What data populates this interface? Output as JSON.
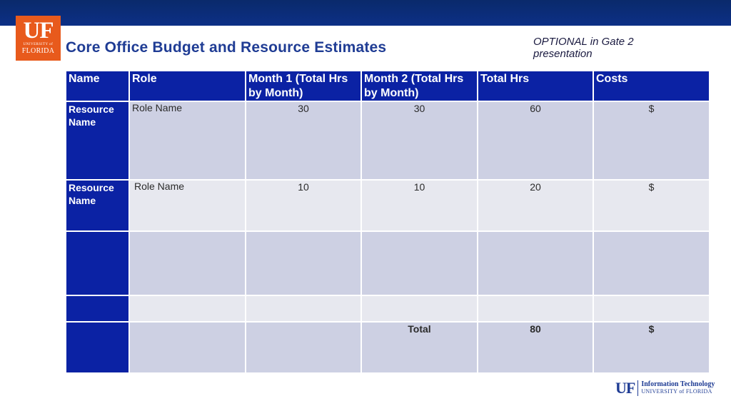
{
  "header": {
    "logo": {
      "main": "UF",
      "small": "UNIVERSITY of",
      "state": "FLORIDA"
    },
    "title": "Core Office Budget and Resource Estimates",
    "note_line1": "OPTIONAL in Gate 2",
    "note_line2": "presentation"
  },
  "table": {
    "columns": [
      "Name",
      "Role",
      "Month 1 (Total Hrs by Month)",
      "Month 2 (Total Hrs by Month)",
      "Total Hrs",
      "Costs"
    ],
    "rows": [
      {
        "name": "Resource Name",
        "role": "Role Name",
        "month1": "30",
        "month2": "30",
        "total": "60",
        "cost": "$"
      },
      {
        "name": "Resource Name",
        "role": "Role Name",
        "month1": "10",
        "month2": "10",
        "total": "20",
        "cost": "$"
      },
      {
        "name": "",
        "role": "",
        "month1": "",
        "month2": "",
        "total": "",
        "cost": ""
      },
      {
        "name": "",
        "role": "",
        "month1": "",
        "month2": "",
        "total": "",
        "cost": ""
      }
    ],
    "total_row": {
      "label": "Total",
      "total": "80",
      "cost": "$"
    }
  },
  "footer": {
    "logo_main": "UF",
    "line1": "Information Technology",
    "line2": "UNIVERSITY of FLORIDA"
  },
  "colors": {
    "header_bar": "#0c2f86",
    "logo_orange": "#e85a1c",
    "title_blue": "#1f3c94",
    "table_header": "#0b22a4",
    "row_dark": "#cdd0e3",
    "row_light": "#e7e8ef"
  }
}
